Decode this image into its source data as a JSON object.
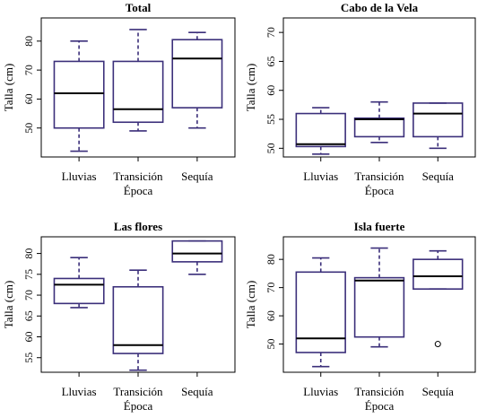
{
  "chart_data": [
    {
      "type": "box",
      "title": "Total",
      "xlabel": "Época",
      "ylabel": "Talla (cm)",
      "ylim": [
        40,
        88
      ],
      "yticks": [
        50,
        60,
        70,
        80
      ],
      "show_xlabel": true,
      "categories": [
        "Lluvias",
        "Transición",
        "Sequía"
      ],
      "series": [
        {
          "category": "Lluvias",
          "min": 42,
          "q1": 50,
          "median": 62,
          "q3": 73,
          "max": 80,
          "outliers": []
        },
        {
          "category": "Transición",
          "min": 49,
          "q1": 52,
          "median": 56.5,
          "q3": 73,
          "max": 84,
          "outliers": []
        },
        {
          "category": "Sequía",
          "min": 50,
          "q1": 57,
          "median": 74,
          "q3": 80.5,
          "max": 83,
          "outliers": []
        }
      ]
    },
    {
      "type": "box",
      "title": "Cabo de la Vela",
      "xlabel": "Época",
      "ylabel": "Talla (cm)",
      "ylim": [
        48.5,
        72.5
      ],
      "yticks": [
        50,
        55,
        60,
        65,
        70
      ],
      "show_xlabel": true,
      "categories": [
        "Lluvias",
        "Transición",
        "Sequía"
      ],
      "series": [
        {
          "category": "Lluvias",
          "min": 49,
          "q1": 50.3,
          "median": 50.7,
          "q3": 56,
          "max": 57,
          "outliers": []
        },
        {
          "category": "Transición",
          "min": 51,
          "q1": 52,
          "median": 55,
          "q3": 55.2,
          "max": 58,
          "outliers": []
        },
        {
          "category": "Sequía",
          "min": 50,
          "q1": 52,
          "median": 56,
          "q3": 57.8,
          "max": 57.8,
          "outliers": []
        }
      ]
    },
    {
      "type": "box",
      "title": "Las flores",
      "xlabel": "Época",
      "ylabel": "Talla (cm)",
      "ylim": [
        51.5,
        84
      ],
      "yticks": [
        55,
        60,
        65,
        70,
        75,
        80
      ],
      "show_xlabel": true,
      "categories": [
        "Lluvias",
        "Transición",
        "Sequía"
      ],
      "series": [
        {
          "category": "Lluvias",
          "min": 67,
          "q1": 68,
          "median": 72.5,
          "q3": 74,
          "max": 79,
          "outliers": []
        },
        {
          "category": "Transición",
          "min": 52,
          "q1": 56,
          "median": 58,
          "q3": 72,
          "max": 76,
          "outliers": []
        },
        {
          "category": "Sequía",
          "min": 75,
          "q1": 78,
          "median": 80,
          "q3": 83,
          "max": 83,
          "outliers": []
        }
      ]
    },
    {
      "type": "box",
      "title": "Isla fuerte",
      "xlabel": "Época",
      "ylabel": "Talla (cm)",
      "ylim": [
        40,
        88
      ],
      "yticks": [
        50,
        60,
        70,
        80
      ],
      "show_xlabel": true,
      "categories": [
        "Lluvias",
        "Transición",
        "Sequía"
      ],
      "series": [
        {
          "category": "Lluvias",
          "min": 42,
          "q1": 47,
          "median": 52,
          "q3": 75.5,
          "max": 80.5,
          "outliers": []
        },
        {
          "category": "Transición",
          "min": 49,
          "q1": 52.5,
          "median": 72.5,
          "q3": 73.5,
          "max": 84,
          "outliers": []
        },
        {
          "category": "Sequía",
          "min": 69.5,
          "q1": 69.5,
          "median": 74,
          "q3": 80,
          "max": 83,
          "outliers": [
            50
          ]
        }
      ]
    }
  ],
  "colors": {
    "box": "#3b2f7a",
    "median": "#000000",
    "frame": "#000000"
  }
}
